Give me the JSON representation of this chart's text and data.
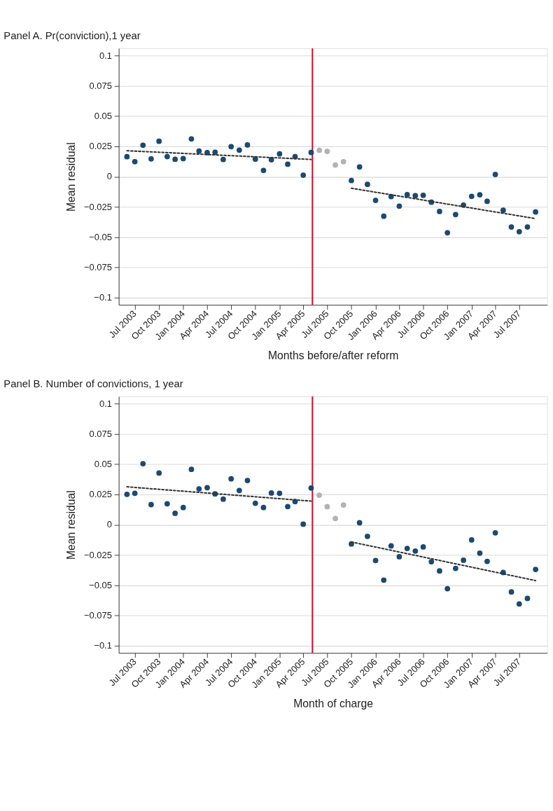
{
  "chart_data": [
    {
      "type": "scatter",
      "title": "Panel A. Pr(conviction),1 year",
      "xlabel": "Months before/after reform",
      "ylabel": "Mean residual",
      "xlim": [
        "2003-05-01",
        "2007-10-15"
      ],
      "xticks": [
        {
          "value": "2003-07-01",
          "label": "Jul 2003"
        },
        {
          "value": "2003-10-01",
          "label": "Oct 2003"
        },
        {
          "value": "2004-01-01",
          "label": "Jan 2004"
        },
        {
          "value": "2004-04-01",
          "label": "Apr 2004"
        },
        {
          "value": "2004-07-01",
          "label": "Jul 2004"
        },
        {
          "value": "2004-10-01",
          "label": "Oct 2004"
        },
        {
          "value": "2005-01-01",
          "label": "Jan 2005"
        },
        {
          "value": "2005-04-01",
          "label": "Apr 2005"
        },
        {
          "value": "2005-07-01",
          "label": "Jul 2005"
        },
        {
          "value": "2005-10-01",
          "label": "Oct 2005"
        },
        {
          "value": "2006-01-01",
          "label": "Jan 2006"
        },
        {
          "value": "2006-04-01",
          "label": "Apr 2006"
        },
        {
          "value": "2006-07-01",
          "label": "Jul 2006"
        },
        {
          "value": "2006-10-01",
          "label": "Oct 2006"
        },
        {
          "value": "2007-01-01",
          "label": "Jan 2007"
        },
        {
          "value": "2007-04-01",
          "label": "Apr 2007"
        },
        {
          "value": "2007-07-01",
          "label": "Jul 2007"
        }
      ],
      "ylim": [
        -0.106,
        0.106
      ],
      "yticks": [
        0.1,
        0.075,
        0.05,
        0.025,
        0,
        {
          "value": -0.025,
          "label": "−0.025"
        },
        {
          "value": -0.05,
          "label": "−0.05"
        },
        {
          "value": -0.075,
          "label": "−0.075"
        },
        {
          "value": -0.1,
          "label": "−0.1"
        }
      ],
      "grid": "y",
      "marker": "circle",
      "ref_lines": [
        {
          "axis": "x",
          "value": "2005-05-06",
          "color": "#c8102e"
        }
      ],
      "series": [
        {
          "color": "#1a4a72",
          "x": [
            "2003-06",
            "2003-07",
            "2003-08",
            "2003-09",
            "2003-10",
            "2003-11",
            "2003-12",
            "2004-01",
            "2004-02",
            "2004-03",
            "2004-04",
            "2004-05",
            "2004-06",
            "2004-07",
            "2004-08",
            "2004-09",
            "2004-10",
            "2004-11",
            "2004-12",
            "2005-01",
            "2005-02",
            "2005-03",
            "2005-04",
            "2005-05"
          ],
          "values": [
            0.0165,
            0.0124,
            0.026,
            0.0147,
            0.0292,
            0.0166,
            0.0143,
            0.0149,
            0.0312,
            0.0211,
            0.0198,
            0.0202,
            0.0142,
            0.0248,
            0.0219,
            0.0262,
            0.0145,
            0.0051,
            0.014,
            0.0188,
            0.0103,
            0.0166,
            0.0012,
            0.02
          ]
        },
        {
          "color": "#b0b3b6",
          "x": [
            "2005-06",
            "2005-07",
            "2005-08",
            "2005-09"
          ],
          "values": [
            0.0218,
            0.0209,
            0.0096,
            0.0124
          ]
        },
        {
          "color": "#1a4a72",
          "x": [
            "2005-10",
            "2005-11",
            "2005-12",
            "2006-01",
            "2006-02",
            "2006-03",
            "2006-04",
            "2006-05",
            "2006-06",
            "2006-07",
            "2006-08",
            "2006-09",
            "2006-10",
            "2006-11",
            "2006-12",
            "2007-01",
            "2007-02",
            "2007-03",
            "2007-04",
            "2007-05",
            "2007-06",
            "2007-07",
            "2007-08",
            "2007-09"
          ],
          "values": [
            -0.0032,
            0.008,
            -0.0064,
            -0.0196,
            -0.0327,
            -0.0165,
            -0.0244,
            -0.0149,
            -0.0158,
            -0.0154,
            -0.0211,
            -0.0288,
            -0.0464,
            -0.0313,
            -0.0235,
            -0.0163,
            -0.015,
            -0.0204,
            0.0018,
            -0.0278,
            -0.0416,
            -0.0455,
            -0.0416,
            -0.0292
          ]
        },
        {
          "type": "line",
          "color": "#333333",
          "line_style": "dashed",
          "marker": "none",
          "x": [
            "2003-06",
            "2005-05"
          ],
          "values": [
            0.0214,
            0.0142
          ]
        },
        {
          "type": "line",
          "color": "#333333",
          "line_style": "dashed",
          "marker": "none",
          "x": [
            "2005-10",
            "2007-09"
          ],
          "values": [
            -0.0096,
            -0.0347
          ]
        }
      ]
    },
    {
      "type": "scatter",
      "title": "Panel B. Number of convictions, 1 year",
      "xlabel": "Month of charge",
      "ylabel": "Mean residual",
      "xlim": [
        "2003-05-01",
        "2007-10-15"
      ],
      "xticks": [
        {
          "value": "2003-07-01",
          "label": "Jul 2003"
        },
        {
          "value": "2003-10-01",
          "label": "Oct 2003"
        },
        {
          "value": "2004-01-01",
          "label": "Jan 2004"
        },
        {
          "value": "2004-04-01",
          "label": "Apr 2004"
        },
        {
          "value": "2004-07-01",
          "label": "Jul 2004"
        },
        {
          "value": "2004-10-01",
          "label": "Oct 2004"
        },
        {
          "value": "2005-01-01",
          "label": "Jan 2005"
        },
        {
          "value": "2005-04-01",
          "label": "Apr 2005"
        },
        {
          "value": "2005-07-01",
          "label": "Jul 2005"
        },
        {
          "value": "2005-10-01",
          "label": "Oct 2005"
        },
        {
          "value": "2006-01-01",
          "label": "Jan 2006"
        },
        {
          "value": "2006-04-01",
          "label": "Apr 2006"
        },
        {
          "value": "2006-07-01",
          "label": "Jul 2006"
        },
        {
          "value": "2006-10-01",
          "label": "Oct 2006"
        },
        {
          "value": "2007-01-01",
          "label": "Jan 2007"
        },
        {
          "value": "2007-04-01",
          "label": "Apr 2007"
        },
        {
          "value": "2007-07-01",
          "label": "Jul 2007"
        }
      ],
      "ylim": [
        -0.106,
        0.106
      ],
      "yticks": [
        0.1,
        0.075,
        0.05,
        0.025,
        0,
        {
          "value": -0.025,
          "label": "−0.025"
        },
        {
          "value": -0.05,
          "label": "−0.05"
        },
        {
          "value": -0.075,
          "label": "−0.075"
        },
        {
          "value": -0.1,
          "label": "−0.1"
        }
      ],
      "grid": "y",
      "marker": "circle",
      "ref_lines": [
        {
          "axis": "x",
          "value": "2005-05-06",
          "color": "#c8102e"
        }
      ],
      "series": [
        {
          "color": "#1a4a72",
          "x": [
            "2003-06",
            "2003-07",
            "2003-08",
            "2003-09",
            "2003-10",
            "2003-11",
            "2003-12",
            "2004-01",
            "2004-02",
            "2004-03",
            "2004-04",
            "2004-05",
            "2004-06",
            "2004-07",
            "2004-08",
            "2004-09",
            "2004-10",
            "2004-11",
            "2004-12",
            "2005-01",
            "2005-02",
            "2005-03",
            "2005-04",
            "2005-05"
          ],
          "values": [
            0.0251,
            0.026,
            0.0504,
            0.0166,
            0.0427,
            0.0173,
            0.0094,
            0.0142,
            0.0457,
            0.0296,
            0.0306,
            0.0255,
            0.0211,
            0.0379,
            0.0283,
            0.0365,
            0.0177,
            0.0142,
            0.0262,
            0.026,
            0.015,
            0.0191,
            0.0004,
            0.0303
          ]
        },
        {
          "color": "#b0b3b6",
          "x": [
            "2005-06",
            "2005-07",
            "2005-08",
            "2005-09"
          ],
          "values": [
            0.0244,
            0.0149,
            0.0051,
            0.0163
          ]
        },
        {
          "color": "#1a4a72",
          "x": [
            "2005-10",
            "2005-11",
            "2005-12",
            "2006-01",
            "2006-02",
            "2006-03",
            "2006-04",
            "2006-05",
            "2006-06",
            "2006-07",
            "2006-08",
            "2006-09",
            "2006-10",
            "2006-11",
            "2006-12",
            "2007-01",
            "2007-02",
            "2007-03",
            "2007-04",
            "2007-05",
            "2007-06",
            "2007-07",
            "2007-08",
            "2007-09"
          ],
          "values": [
            -0.0159,
            0.0016,
            -0.0096,
            -0.0296,
            -0.0458,
            -0.0175,
            -0.0265,
            -0.0196,
            -0.0218,
            -0.0184,
            -0.0306,
            -0.0382,
            -0.0529,
            -0.0361,
            -0.0294,
            -0.0126,
            -0.0235,
            -0.0303,
            -0.0067,
            -0.0395,
            -0.0556,
            -0.0655,
            -0.0609,
            -0.037
          ]
        },
        {
          "type": "line",
          "color": "#333333",
          "line_style": "dashed",
          "marker": "none",
          "x": [
            "2003-06",
            "2005-05"
          ],
          "values": [
            0.0313,
            0.0195
          ]
        },
        {
          "type": "line",
          "color": "#333333",
          "line_style": "dashed",
          "marker": "none",
          "x": [
            "2005-10",
            "2007-09"
          ],
          "values": [
            -0.0143,
            -0.0462
          ]
        }
      ]
    }
  ]
}
